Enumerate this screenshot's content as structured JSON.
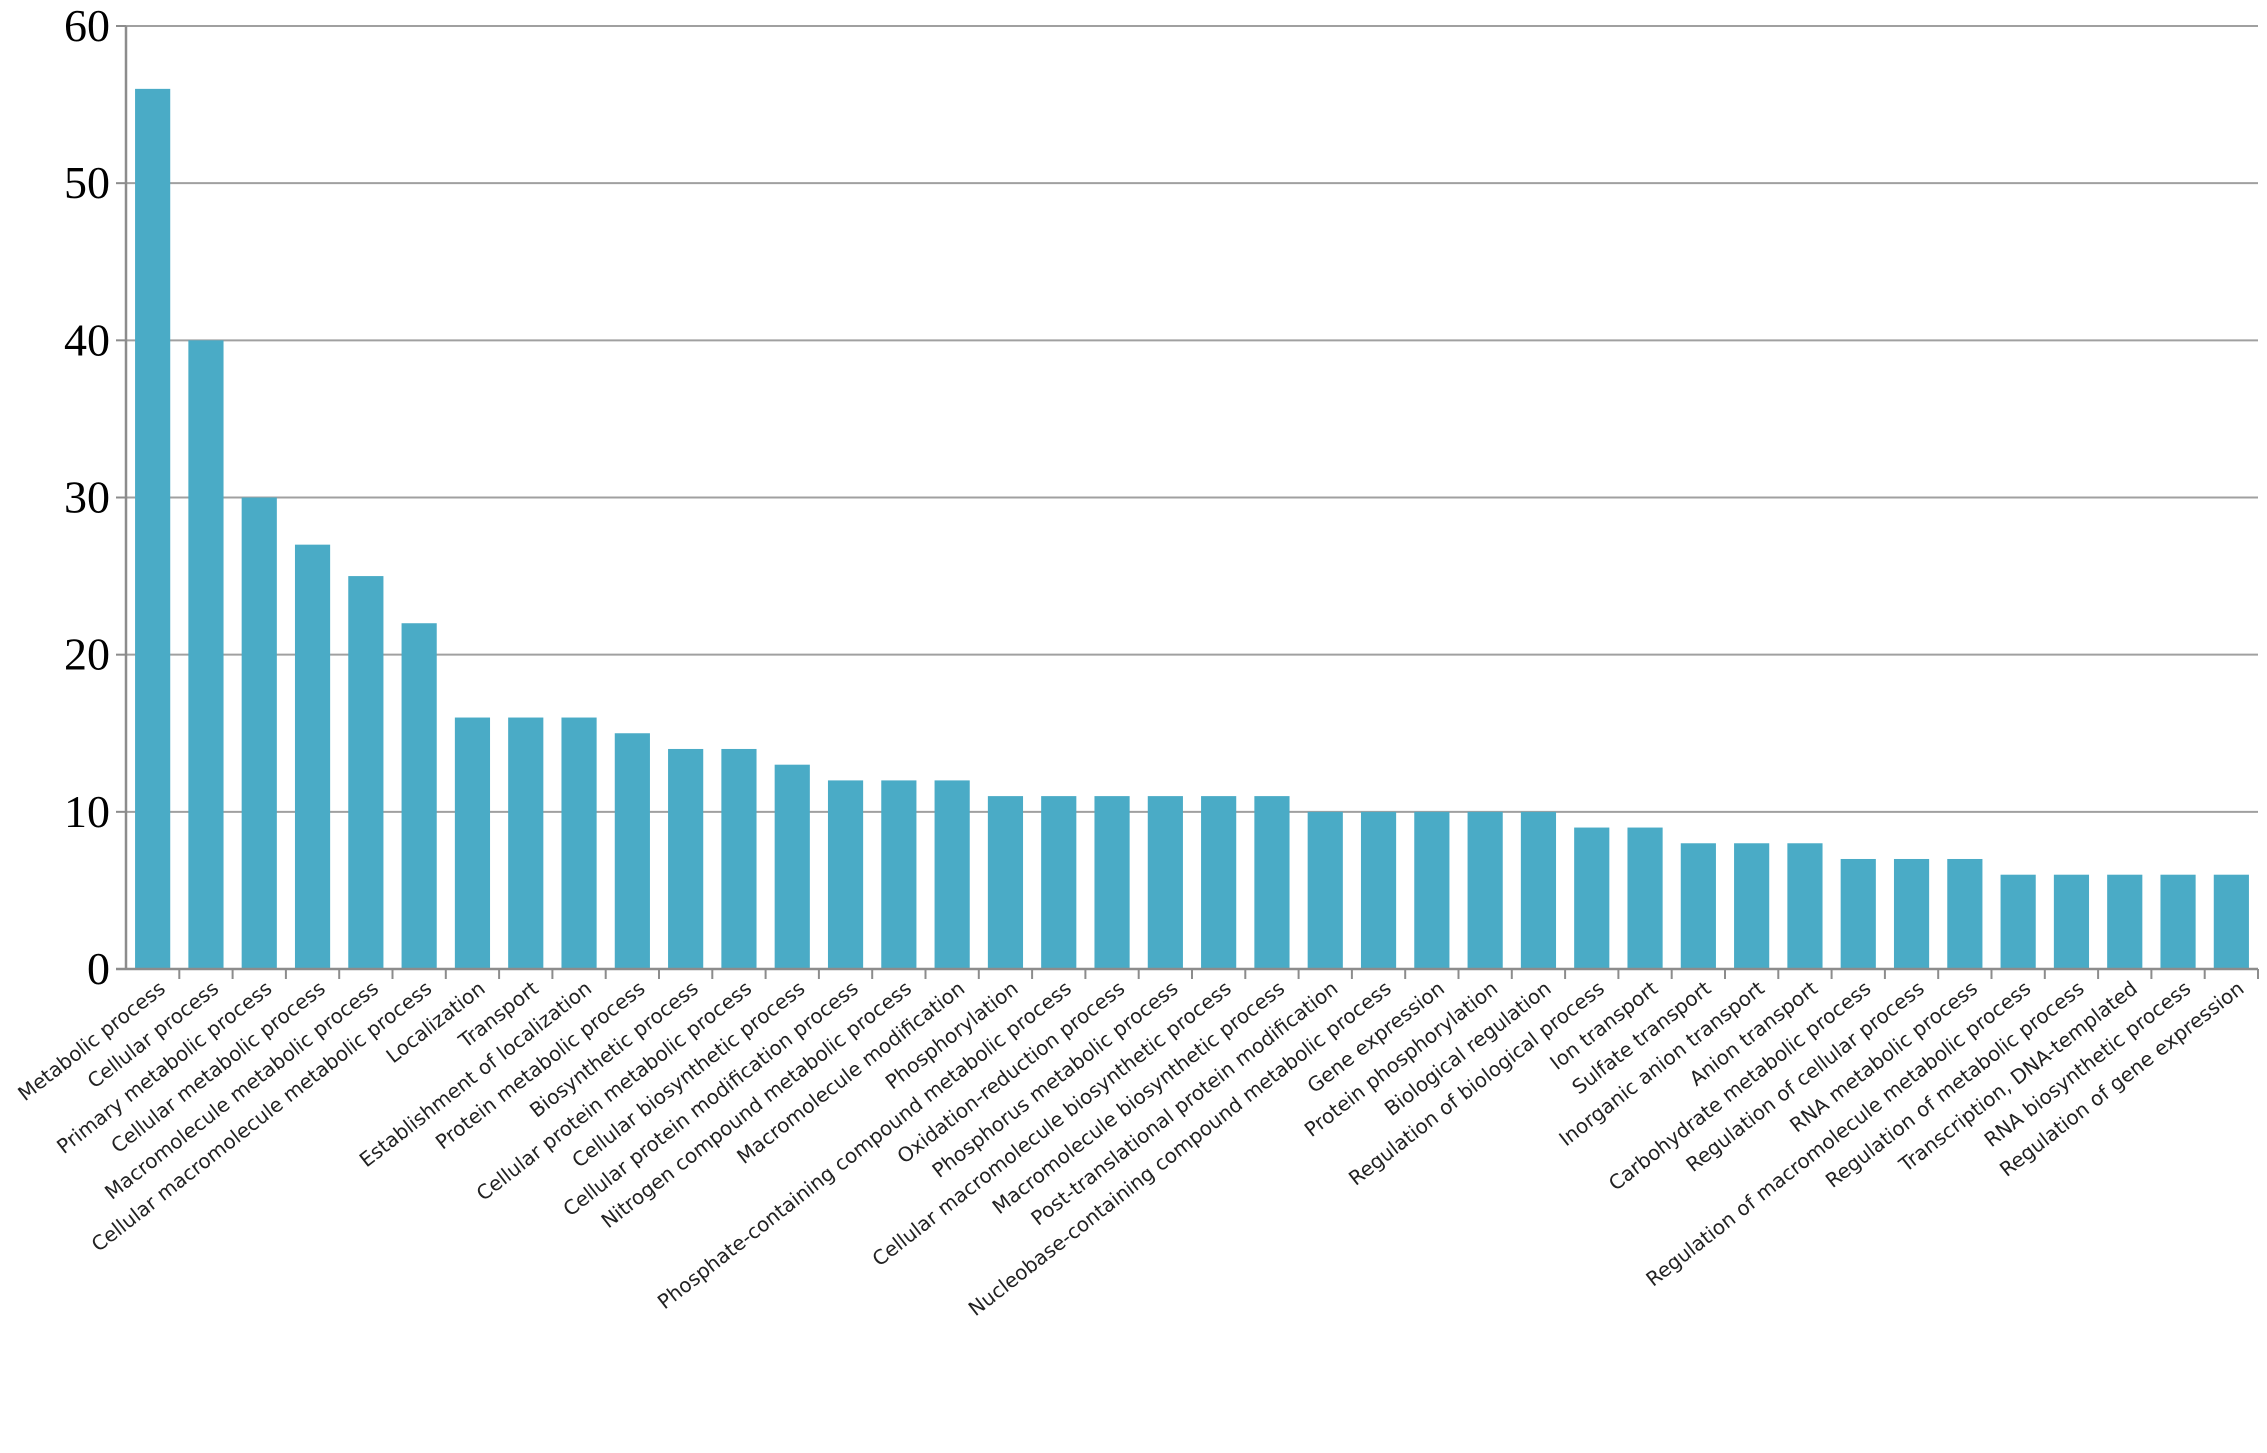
{
  "chart_data": {
    "type": "bar",
    "title": "",
    "xlabel": "",
    "ylabel": "",
    "ylim": [
      0,
      60
    ],
    "yticks": [
      0,
      10,
      20,
      30,
      40,
      50,
      60
    ],
    "grid": true,
    "bar_color": "#4aabc6",
    "categories": [
      "Metabolic process",
      "Cellular process",
      "Primary metabolic process",
      "Cellular metabolic process",
      "Macromolecule metabolic process",
      "Cellular macromolecule metabolic process",
      "Localization",
      "Transport",
      "Establishment of localization",
      "Protein metabolic process",
      "Biosynthetic process",
      "Cellular protein metabolic process",
      "Cellular biosynthetic process",
      "Cellular protein modification process",
      "Nitrogen compound metabolic process",
      "Macromolecule modification",
      "Phosphorylation",
      "Phosphate-containing compound metabolic process",
      "Oxidation-reduction process",
      "Phosphorus metabolic process",
      "Cellular macromolecule biosynthetic process",
      "Macromolecule biosynthetic process",
      "Post-translational protein modification",
      "Nucleobase-containing compound metabolic process",
      "Gene expression",
      "Protein phosphorylation",
      "Biological regulation",
      "Regulation of biological process",
      "Ion transport",
      "Sulfate transport",
      "Inorganic anion transport",
      "Anion transport",
      "Carbohydrate metabolic process",
      "Regulation of cellular process",
      "RNA metabolic process",
      "Regulation of macromolecule metabolic process",
      "Regulation of metabolic process",
      "Transcription, DNA-templated",
      "RNA biosynthetic process",
      "Regulation of gene expression"
    ],
    "values": [
      56,
      40,
      30,
      27,
      25,
      22,
      16,
      16,
      16,
      15,
      14,
      14,
      13,
      12,
      12,
      12,
      11,
      11,
      11,
      11,
      11,
      11,
      10,
      10,
      10,
      10,
      10,
      9,
      9,
      8,
      8,
      8,
      7,
      7,
      7,
      6,
      6,
      6,
      6,
      6
    ]
  }
}
